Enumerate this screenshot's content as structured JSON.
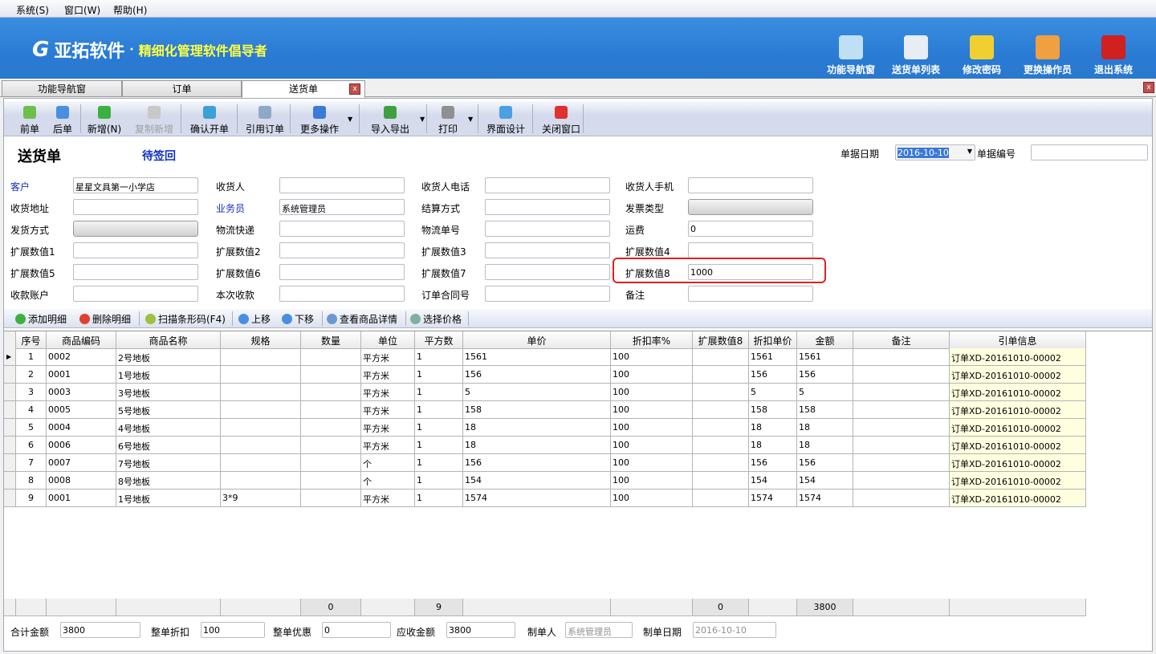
{
  "menu": [
    "系统(S)",
    "窗口(W)",
    "帮助(H)"
  ],
  "banner": {
    "brand": "亚拓软件",
    "dot": "·",
    "slogan": "精细化管理软件倡导者",
    "buttons": [
      {
        "label": "功能导航窗",
        "icon": "monitor-icon",
        "color": "#bfe0f4"
      },
      {
        "label": "送货单列表",
        "icon": "list-icon",
        "color": "#e8ecf4"
      },
      {
        "label": "修改密码",
        "icon": "lock-icon",
        "color": "#f0d030"
      },
      {
        "label": "更换操作员",
        "icon": "user-icon",
        "color": "#f0a040"
      },
      {
        "label": "退出系统",
        "icon": "power-icon",
        "color": "#d02020"
      }
    ]
  },
  "tabs": [
    {
      "label": "功能导航窗"
    },
    {
      "label": "订单"
    },
    {
      "label": "送货单",
      "active": true
    }
  ],
  "toolbar": [
    {
      "label": "前单",
      "icon": "arrow-left-icon",
      "color": "#6cc04a"
    },
    {
      "label": "后单",
      "icon": "arrow-right-icon",
      "color": "#4a8ee0"
    },
    {
      "label": "新增(N)",
      "icon": "plus-icon",
      "color": "#3cb040"
    },
    {
      "label": "复制新增",
      "icon": "copy-icon",
      "color": "#c8c8c8",
      "disabled": true
    },
    {
      "label": "确认开单",
      "icon": "save-icon",
      "color": "#3aa0d8"
    },
    {
      "label": "引用订单",
      "icon": "document-icon",
      "color": "#90a8c8"
    },
    {
      "label": "更多操作",
      "icon": "double-chevron-down-icon",
      "color": "#3a7ad8"
    },
    {
      "label": "导入导出",
      "icon": "import-export-icon",
      "color": "#40a040"
    },
    {
      "label": "打印",
      "icon": "printer-icon",
      "color": "#909090"
    },
    {
      "label": "界面设计",
      "icon": "layout-icon",
      "color": "#4aa0e0"
    },
    {
      "label": "关闭窗口",
      "icon": "close-icon",
      "color": "#e03030"
    }
  ],
  "header": {
    "title": "送货单",
    "status": "待签回",
    "date_label": "单据日期",
    "date_value": "2016-10-10",
    "number_label": "单据编号",
    "number_value": ""
  },
  "form": [
    [
      {
        "label": "客户",
        "value": "星星文具第一小学店",
        "link": true
      },
      {
        "label": "收货人",
        "value": ""
      },
      {
        "label": "收货人电话",
        "value": ""
      },
      {
        "label": "收货人手机",
        "value": ""
      }
    ],
    [
      {
        "label": "收货地址",
        "value": ""
      },
      {
        "label": "业务员",
        "value": "系统管理员",
        "link": true
      },
      {
        "label": "结算方式",
        "value": ""
      },
      {
        "label": "发票类型",
        "value": "",
        "button": true
      }
    ],
    [
      {
        "label": "发货方式",
        "value": "",
        "button": true
      },
      {
        "label": "物流快递",
        "value": ""
      },
      {
        "label": "物流单号",
        "value": ""
      },
      {
        "label": "运费",
        "value": "0"
      }
    ],
    [
      {
        "label": "扩展数值1",
        "value": ""
      },
      {
        "label": "扩展数值2",
        "value": ""
      },
      {
        "label": "扩展数值3",
        "value": ""
      },
      {
        "label": "扩展数值4",
        "value": ""
      }
    ],
    [
      {
        "label": "扩展数值5",
        "value": ""
      },
      {
        "label": "扩展数值6",
        "value": ""
      },
      {
        "label": "扩展数值7",
        "value": ""
      },
      {
        "label": "扩展数值8",
        "value": "1000",
        "highlight": true
      }
    ],
    [
      {
        "label": "收款账户",
        "value": ""
      },
      {
        "label": "本次收款",
        "value": ""
      },
      {
        "label": "订单合同号",
        "value": ""
      },
      {
        "label": "备注",
        "value": ""
      }
    ]
  ],
  "detail_toolbar": [
    {
      "label": "添加明细",
      "icon": "add-icon",
      "color": "#3cb040"
    },
    {
      "label": "删除明细",
      "icon": "delete-icon",
      "color": "#e04030"
    },
    {
      "label": "扫描条形码(F4)",
      "icon": "scanner-icon",
      "color": "#a0c040"
    },
    {
      "label": "上移",
      "icon": "arrow-up-icon",
      "color": "#4a8ee0"
    },
    {
      "label": "下移",
      "icon": "arrow-down-icon",
      "color": "#4a8ee0"
    },
    {
      "label": "查看商品详情",
      "icon": "details-icon",
      "color": "#6a9ad0"
    },
    {
      "label": "选择价格",
      "icon": "table-icon",
      "color": "#80b0a0"
    }
  ],
  "table": {
    "columns": [
      "序号",
      "商品编码",
      "商品名称",
      "规格",
      "数量",
      "单位",
      "平方数",
      "单价",
      "折扣率%",
      "扩展数值8",
      "折扣单价",
      "金额",
      "备注",
      "引单信息"
    ],
    "rows": [
      [
        "1",
        "0002",
        "2号地板",
        "",
        "",
        "平方米",
        "1",
        "1561",
        "100",
        "",
        "1561",
        "1561",
        "",
        "订单XD-20161010-00002"
      ],
      [
        "2",
        "0001",
        "1号地板",
        "",
        "",
        "平方米",
        "1",
        "156",
        "100",
        "",
        "156",
        "156",
        "",
        "订单XD-20161010-00002"
      ],
      [
        "3",
        "0003",
        "3号地板",
        "",
        "",
        "平方米",
        "1",
        "5",
        "100",
        "",
        "5",
        "5",
        "",
        "订单XD-20161010-00002"
      ],
      [
        "4",
        "0005",
        "5号地板",
        "",
        "",
        "平方米",
        "1",
        "158",
        "100",
        "",
        "158",
        "158",
        "",
        "订单XD-20161010-00002"
      ],
      [
        "5",
        "0004",
        "4号地板",
        "",
        "",
        "平方米",
        "1",
        "18",
        "100",
        "",
        "18",
        "18",
        "",
        "订单XD-20161010-00002"
      ],
      [
        "6",
        "0006",
        "6号地板",
        "",
        "",
        "平方米",
        "1",
        "18",
        "100",
        "",
        "18",
        "18",
        "",
        "订单XD-20161010-00002"
      ],
      [
        "7",
        "0007",
        "7号地板",
        "",
        "",
        "个",
        "1",
        "156",
        "100",
        "",
        "156",
        "156",
        "",
        "订单XD-20161010-00002"
      ],
      [
        "8",
        "0008",
        "8号地板",
        "",
        "",
        "个",
        "1",
        "154",
        "100",
        "",
        "154",
        "154",
        "",
        "订单XD-20161010-00002"
      ],
      [
        "9",
        "0001",
        "1号地板",
        "3*9",
        "",
        "平方米",
        "1",
        "1574",
        "100",
        "",
        "1574",
        "1574",
        "",
        "订单XD-20161010-00002"
      ]
    ],
    "totals": [
      "",
      "",
      "",
      "",
      "0",
      "",
      "9",
      "",
      "",
      "0",
      "",
      "3800",
      "",
      ""
    ]
  },
  "footer": [
    {
      "label": "合计金额",
      "value": "3800"
    },
    {
      "label": "整单折扣",
      "value": "100"
    },
    {
      "label": "整单优惠",
      "value": "0"
    },
    {
      "label": "应收金额",
      "value": "3800"
    },
    {
      "label": "制单人",
      "value": "系统管理员",
      "readonly": true
    },
    {
      "label": "制单日期",
      "value": "2016-10-10",
      "readonly": true
    }
  ]
}
